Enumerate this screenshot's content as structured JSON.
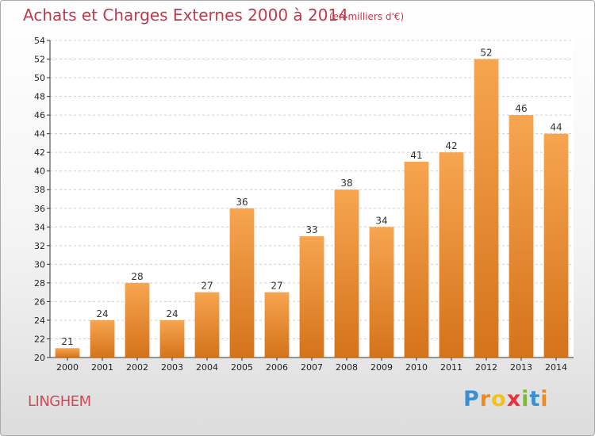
{
  "chart_data": {
    "type": "bar",
    "title": "Achats et Charges Externes 2000 à 2014",
    "subtitle": "(en milliers d'€)",
    "categories": [
      "2000",
      "2001",
      "2002",
      "2003",
      "2004",
      "2005",
      "2006",
      "2007",
      "2008",
      "2009",
      "2010",
      "2011",
      "2012",
      "2013",
      "2014"
    ],
    "values": [
      21,
      24,
      28,
      24,
      27,
      36,
      27,
      33,
      38,
      34,
      41,
      42,
      52,
      46,
      44
    ],
    "ylim": [
      20,
      54
    ],
    "yticks": [
      20,
      22,
      24,
      26,
      28,
      30,
      32,
      34,
      36,
      38,
      40,
      42,
      44,
      46,
      48,
      50,
      52,
      54
    ],
    "grid": true,
    "bar_color_top": "#f7a550",
    "bar_color_bottom": "#d4731a"
  },
  "location": "LINGHEM",
  "logo": {
    "letters": [
      "P",
      "r",
      "o",
      "x",
      "i",
      "t",
      "i"
    ],
    "colors": [
      "#3a8fd0",
      "#f08a1c",
      "#f2c21a",
      "#e8323c",
      "#7cbd2e",
      "#3a8fd0",
      "#f08a1c"
    ]
  }
}
